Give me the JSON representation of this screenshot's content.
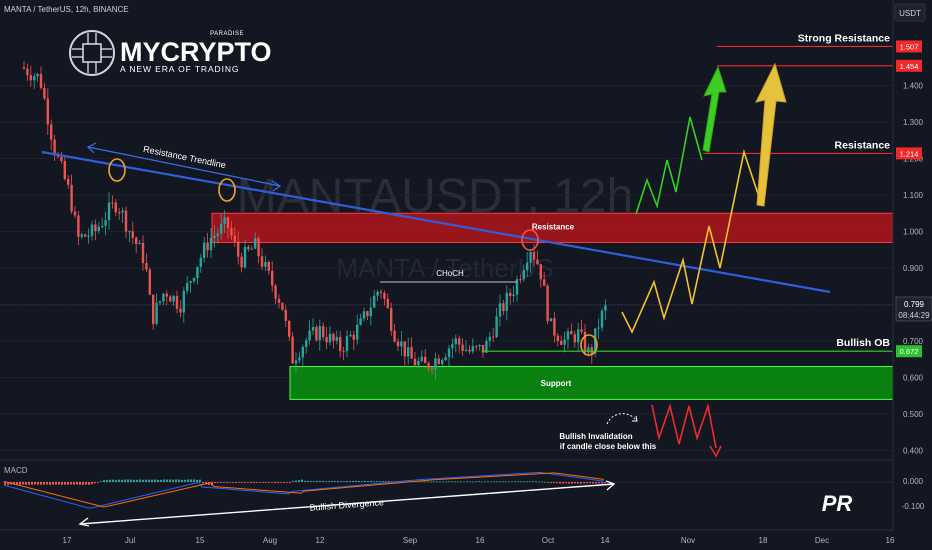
{
  "header": {
    "symbol_line": "MANTA / TetherUS, 12h, BINANCE",
    "currency": "USDT"
  },
  "logo": {
    "brand": "MYCRYPTO",
    "tag": "PARADISE",
    "tagline": "A NEW ERA OF TRADING"
  },
  "watermark": {
    "main": "MANTAUSDT, 12h",
    "sub": "MANTA / TetherUS"
  },
  "colors": {
    "background": "#131722",
    "bull": "#26a69a",
    "bear": "#ef5350",
    "resistance_zone": "#b2151b",
    "support_zone": "#0a8c10",
    "trendline": "#2f5fd8",
    "forecast": "#f2c32a",
    "forecast_green": "#33d11f",
    "level_line": "#ef2a2a",
    "ob_line": "#2fd52f"
  },
  "chart_data": {
    "type": "candlestick",
    "price_axis": {
      "ticks": [
        "1.400",
        "1.300",
        "1.200",
        "1.100",
        "1.000",
        "0.900",
        "0.800",
        "0.700",
        "0.600",
        "0.500",
        "0.400"
      ],
      "current_price": "0.799",
      "countdown": "08:44:29"
    },
    "price_labels": [
      {
        "text": "1.507",
        "price": 1.507
      },
      {
        "text": "1.454",
        "price": 1.454
      },
      {
        "text": "1.214",
        "price": 1.214
      },
      {
        "text": "0.672",
        "price": 0.672
      }
    ],
    "time_axis": [
      "17",
      "Jul",
      "15",
      "Aug",
      "12",
      "Sep",
      "16",
      "Oct",
      "14",
      "Nov",
      "18",
      "Dec",
      "16"
    ],
    "zones": [
      {
        "name": "resistance",
        "top": 1.05,
        "bottom": 0.97,
        "label": "Resistance"
      },
      {
        "name": "support",
        "top": 0.63,
        "bottom": 0.54,
        "label": "Support"
      }
    ],
    "levels": [
      {
        "price": 1.507,
        "label": "Strong Resistance"
      },
      {
        "price": 1.454,
        "label": ""
      },
      {
        "price": 1.214,
        "label": "Resistance"
      },
      {
        "price": 0.672,
        "label": "Bullish OB"
      }
    ],
    "annotations": {
      "trendline": "Resistance Trendline",
      "choch": "CHoCH",
      "invalidation_line1": "Bullish Invalidation",
      "invalidation_line2": "if candle close below this",
      "divergence": "Bullish Divergence"
    },
    "macd": {
      "label": "MACD",
      "ticks": [
        "0.000",
        "-0.100"
      ]
    }
  },
  "badge": "PR"
}
